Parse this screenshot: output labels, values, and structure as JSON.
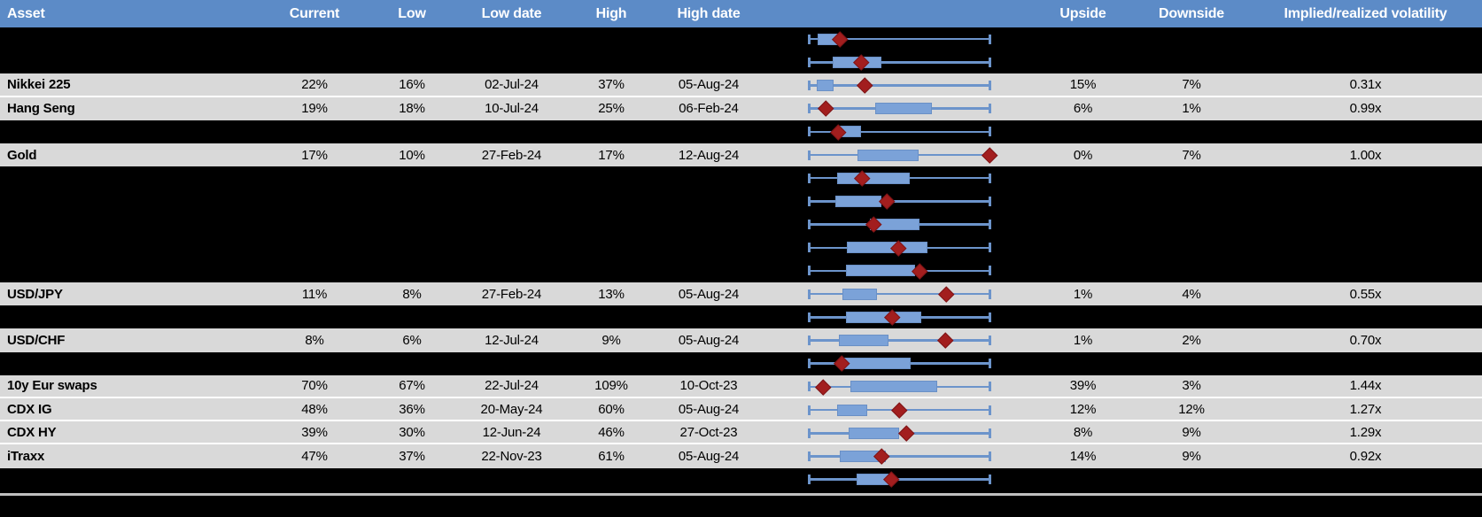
{
  "colors": {
    "header_bg": "#5C8BC7",
    "header_text": "#FFFFFF",
    "row_gray": "#D9D9D9",
    "row_black": "#000000",
    "whisker_blue": "#6C94CB",
    "box_blue": "#7BA2D8",
    "marker_dark_red": "#A21E1E",
    "divider_gray": "#BFBFBF"
  },
  "chart_data": {
    "type": "table",
    "columns": [
      "Asset",
      "Current",
      "Low",
      "Low date",
      "High",
      "High date",
      "",
      "Upside",
      "Downside",
      "Implied/realized volatility"
    ],
    "boxplot_layout": {
      "description_marker": "current value diamond",
      "whisker_range": "low-to-high normalized 0-1",
      "box": "interquartile band"
    },
    "rows": [
      {
        "kind": "blank",
        "asset": "",
        "current": "",
        "low": "",
        "low_date": "",
        "high": "",
        "high_date": "",
        "upside": "",
        "downside": "",
        "vol": "",
        "box": {
          "s": 0.049,
          "e": 0.18,
          "m": 0.171
        }
      },
      {
        "kind": "blank",
        "asset": "",
        "current": "",
        "low": "",
        "low_date": "",
        "high": "",
        "high_date": "",
        "upside": "",
        "downside": "",
        "vol": "",
        "box": {
          "s": 0.132,
          "e": 0.4,
          "m": 0.288
        }
      },
      {
        "kind": "data",
        "sep": true,
        "asset": "Nikkei 225",
        "current": "22%",
        "low": "16%",
        "low_date": "02-Jul-24",
        "high": "37%",
        "high_date": "05-Aug-24",
        "upside": "15%",
        "downside": "7%",
        "vol": "0.31x",
        "box": {
          "s": 0.044,
          "e": 0.137,
          "m": 0.307
        }
      },
      {
        "kind": "data",
        "asset": "Hang Seng",
        "current": "19%",
        "low": "18%",
        "low_date": "10-Jul-24",
        "high": "25%",
        "high_date": "06-Feb-24",
        "upside": "6%",
        "downside": "1%",
        "vol": "0.99x",
        "box": {
          "s": 0.366,
          "e": 0.678,
          "m": 0.093
        }
      },
      {
        "kind": "blank",
        "asset": "",
        "current": "",
        "low": "",
        "low_date": "",
        "high": "",
        "high_date": "",
        "upside": "",
        "downside": "",
        "vol": "",
        "box": {
          "s": 0.171,
          "e": 0.288,
          "m": 0.161
        }
      },
      {
        "kind": "data",
        "asset": "Gold",
        "current": "17%",
        "low": "10%",
        "low_date": "27-Feb-24",
        "high": "17%",
        "high_date": "12-Aug-24",
        "upside": "0%",
        "downside": "7%",
        "vol": "1.00x",
        "box": {
          "s": 0.268,
          "e": 0.605,
          "m": 0.995
        }
      },
      {
        "kind": "blank",
        "asset": "",
        "current": "",
        "low": "",
        "low_date": "",
        "high": "",
        "high_date": "",
        "upside": "",
        "downside": "",
        "vol": "",
        "box": {
          "s": 0.156,
          "e": 0.556,
          "m": 0.293
        }
      },
      {
        "kind": "blank",
        "asset": "",
        "current": "",
        "low": "",
        "low_date": "",
        "high": "",
        "high_date": "",
        "upside": "",
        "downside": "",
        "vol": "",
        "box": {
          "s": 0.146,
          "e": 0.4,
          "m": 0.429
        }
      },
      {
        "kind": "blank",
        "asset": "",
        "current": "",
        "low": "",
        "low_date": "",
        "high": "",
        "high_date": "",
        "upside": "",
        "downside": "",
        "vol": "",
        "box": {
          "s": 0.337,
          "e": 0.61,
          "m": 0.356
        }
      },
      {
        "kind": "blank",
        "asset": "",
        "current": "",
        "low": "",
        "low_date": "",
        "high": "",
        "high_date": "",
        "upside": "",
        "downside": "",
        "vol": "",
        "box": {
          "s": 0.21,
          "e": 0.654,
          "m": 0.493
        }
      },
      {
        "kind": "blank",
        "asset": "",
        "current": "",
        "low": "",
        "low_date": "",
        "high": "",
        "high_date": "",
        "upside": "",
        "downside": "",
        "vol": "",
        "box": {
          "s": 0.205,
          "e": 0.585,
          "m": 0.61
        }
      },
      {
        "kind": "data",
        "asset": "USD/JPY",
        "current": "11%",
        "low": "8%",
        "low_date": "27-Feb-24",
        "high": "13%",
        "high_date": "05-Aug-24",
        "upside": "1%",
        "downside": "4%",
        "vol": "0.55x",
        "box": {
          "s": 0.185,
          "e": 0.376,
          "m": 0.756
        }
      },
      {
        "kind": "blank",
        "asset": "",
        "current": "",
        "low": "",
        "low_date": "",
        "high": "",
        "high_date": "",
        "upside": "",
        "downside": "",
        "vol": "",
        "box": {
          "s": 0.205,
          "e": 0.62,
          "m": 0.459
        }
      },
      {
        "kind": "data",
        "asset": "USD/CHF",
        "current": "8%",
        "low": "6%",
        "low_date": "12-Jul-24",
        "high": "9%",
        "high_date": "05-Aug-24",
        "upside": "1%",
        "downside": "2%",
        "vol": "0.70x",
        "box": {
          "s": 0.166,
          "e": 0.439,
          "m": 0.751
        }
      },
      {
        "kind": "blank",
        "asset": "",
        "current": "",
        "low": "",
        "low_date": "",
        "high": "",
        "high_date": "",
        "upside": "",
        "downside": "",
        "vol": "",
        "box": {
          "s": 0.195,
          "e": 0.561,
          "m": 0.18
        }
      },
      {
        "kind": "data",
        "sep": true,
        "asset": "10y Eur swaps",
        "current": "70%",
        "low": "67%",
        "low_date": "22-Jul-24",
        "high": "109%",
        "high_date": "10-Oct-23",
        "upside": "39%",
        "downside": "3%",
        "vol": "1.44x",
        "box": {
          "s": 0.229,
          "e": 0.707,
          "m": 0.078
        }
      },
      {
        "kind": "data",
        "sep": true,
        "asset": "CDX IG",
        "current": "48%",
        "low": "36%",
        "low_date": "20-May-24",
        "high": "60%",
        "high_date": "05-Aug-24",
        "upside": "12%",
        "downside": "12%",
        "vol": "1.27x",
        "box": {
          "s": 0.156,
          "e": 0.322,
          "m": 0.498
        }
      },
      {
        "kind": "data",
        "sep": true,
        "asset": "CDX HY",
        "current": "39%",
        "low": "30%",
        "low_date": "12-Jun-24",
        "high": "46%",
        "high_date": "27-Oct-23",
        "upside": "8%",
        "downside": "9%",
        "vol": "1.29x",
        "box": {
          "s": 0.22,
          "e": 0.498,
          "m": 0.537
        }
      },
      {
        "kind": "data",
        "asset": "iTraxx",
        "current": "47%",
        "low": "37%",
        "low_date": "22-Nov-23",
        "high": "61%",
        "high_date": "05-Aug-24",
        "upside": "14%",
        "downside": "9%",
        "vol": "0.92x",
        "box": {
          "s": 0.171,
          "e": 0.424,
          "m": 0.4
        }
      },
      {
        "kind": "blank",
        "asset": "",
        "current": "",
        "low": "",
        "low_date": "",
        "high": "",
        "high_date": "",
        "upside": "",
        "downside": "",
        "vol": "",
        "box": {
          "s": 0.263,
          "e": 0.439,
          "m": 0.454
        }
      }
    ]
  }
}
